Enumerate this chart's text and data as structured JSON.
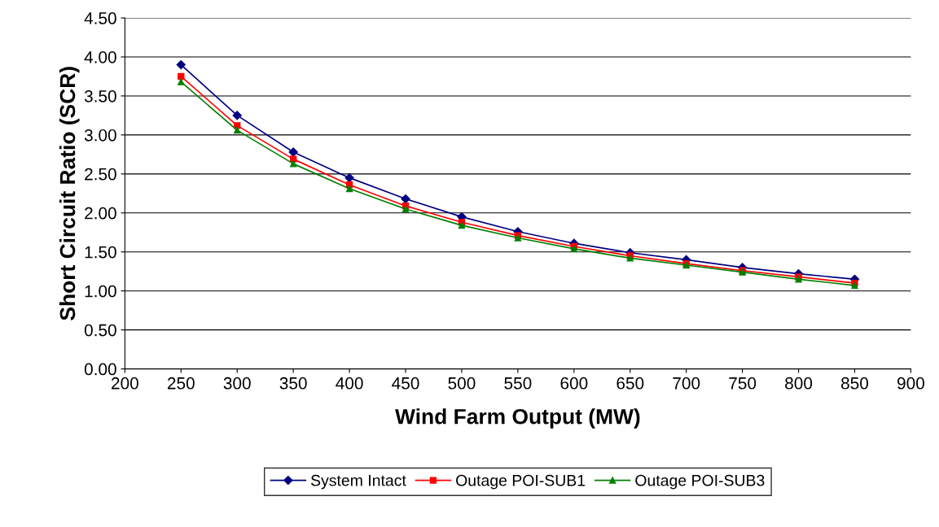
{
  "chart_data": {
    "type": "line",
    "xlabel": "Wind Farm Output (MW)",
    "ylabel": "Short Circuit Ratio (SCR)",
    "x": [
      250,
      300,
      350,
      400,
      450,
      500,
      550,
      600,
      650,
      700,
      750,
      800,
      850
    ],
    "series": [
      {
        "name": "System Intact",
        "color": "#000080",
        "marker": "diamond",
        "values": [
          3.9,
          3.25,
          2.78,
          2.45,
          2.18,
          1.95,
          1.76,
          1.61,
          1.49,
          1.4,
          1.3,
          1.22,
          1.15
        ]
      },
      {
        "name": "Outage POI-SUB1",
        "color": "#ff0000",
        "marker": "square",
        "values": [
          3.75,
          3.12,
          2.69,
          2.36,
          2.09,
          1.88,
          1.71,
          1.57,
          1.45,
          1.35,
          1.26,
          1.18,
          1.1
        ]
      },
      {
        "name": "Outage POI-SUB3",
        "color": "#008000",
        "marker": "triangle",
        "values": [
          3.68,
          3.06,
          2.63,
          2.31,
          2.05,
          1.84,
          1.68,
          1.54,
          1.42,
          1.33,
          1.24,
          1.15,
          1.07
        ]
      }
    ],
    "xlim": [
      200,
      900
    ],
    "xticks": [
      200,
      250,
      300,
      350,
      400,
      450,
      500,
      550,
      600,
      650,
      700,
      750,
      800,
      850,
      900
    ],
    "ylim": [
      0,
      4.5
    ],
    "yticks": [
      {
        "value": 0,
        "label": "0.00"
      },
      {
        "value": 0.5,
        "label": "0.50"
      },
      {
        "value": 1,
        "label": "1.00"
      },
      {
        "value": 1.5,
        "label": "1.50"
      },
      {
        "value": 2,
        "label": "2.00"
      },
      {
        "value": 2.5,
        "label": "2.50"
      },
      {
        "value": 3,
        "label": "3.00"
      },
      {
        "value": 3.5,
        "label": "3.50"
      },
      {
        "value": 4,
        "label": "4.00"
      },
      {
        "value": 4.5,
        "label": "4.50"
      }
    ],
    "grid": "y",
    "legend": "bottom",
    "line_style": "solid"
  }
}
